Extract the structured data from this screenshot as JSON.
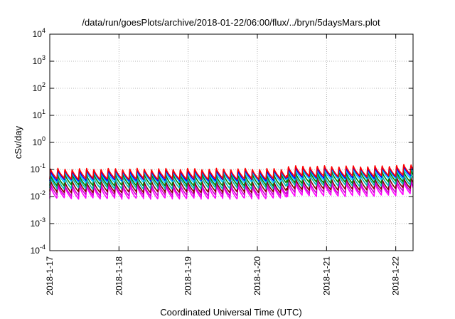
{
  "chart_data": {
    "type": "line",
    "title": "/data/run/goesPlots/archive/2018-01-22/06:00/flux/../bryn/5daysMars.plot",
    "xlabel": "Coordinated Universal Time (UTC)",
    "ylabel": "cSv/day",
    "y_scale": "log",
    "ylim": [
      0.0001,
      10000
    ],
    "y_ticks": [
      {
        "base": "10",
        "exp": "-4",
        "value": 0.0001
      },
      {
        "base": "10",
        "exp": "-3",
        "value": 0.001
      },
      {
        "base": "10",
        "exp": "-2",
        "value": 0.01
      },
      {
        "base": "10",
        "exp": "-1",
        "value": 0.1
      },
      {
        "base": "10",
        "exp": "0",
        "value": 1
      },
      {
        "base": "10",
        "exp": "1",
        "value": 10
      },
      {
        "base": "10",
        "exp": "2",
        "value": 100
      },
      {
        "base": "10",
        "exp": "3",
        "value": 1000
      },
      {
        "base": "10",
        "exp": "4",
        "value": 10000
      }
    ],
    "xlim": [
      "2018-01-17",
      "2018-01-22 06:00"
    ],
    "x_ticks": [
      "2018-1-17",
      "2018-1-18",
      "2018-1-19",
      "2018-1-20",
      "2018-1-21",
      "2018-1-22"
    ],
    "grid": true,
    "legend": "none",
    "pattern": {
      "sawtooth_period_hours": 2.5,
      "baseline_shift_at": "2018-01-20 10:00",
      "baseline_shift_factor": 1.25,
      "late_rise_from": "2018-01-21 18:00",
      "late_rise_factor": 1.15
    },
    "series": [
      {
        "color": "#ff00ff",
        "peak": 0.026,
        "trough": 0.0085
      },
      {
        "color": "#cc00cc",
        "peak": 0.031,
        "trough": 0.011
      },
      {
        "color": "#800000",
        "peak": 0.04,
        "trough": 0.0145
      },
      {
        "color": "#00b3b3",
        "peak": 0.055,
        "trough": 0.02
      },
      {
        "color": "#008000",
        "peak": 0.07,
        "trough": 0.026
      },
      {
        "color": "#00c8ff",
        "peak": 0.085,
        "trough": 0.034
      },
      {
        "color": "#0000ff",
        "peak": 0.1,
        "trough": 0.04
      },
      {
        "color": "#ff0000",
        "peak": 0.112,
        "trough": 0.045
      }
    ]
  }
}
